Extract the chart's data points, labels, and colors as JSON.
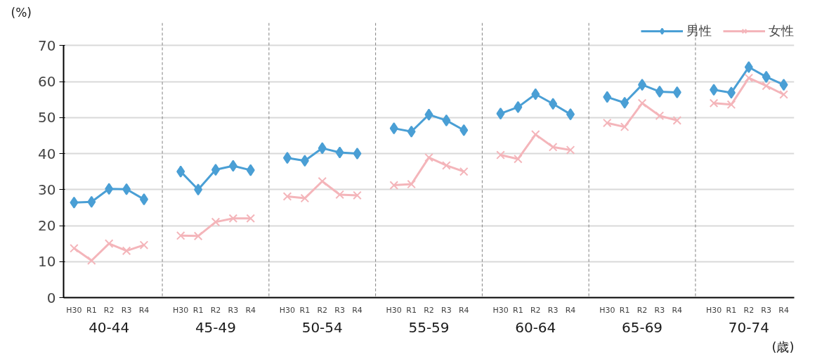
{
  "chart_data": {
    "type": "line",
    "ylabel": "(%)",
    "xlabel": "(歳)",
    "categories": [
      "H30",
      "R1",
      "R2",
      "R3",
      "R4",
      "H30",
      "R1",
      "R2",
      "R3",
      "R4",
      "H30",
      "R1",
      "R2",
      "R3",
      "R4",
      "H30",
      "R1",
      "R2",
      "R3",
      "R4",
      "H30",
      "R1",
      "R2",
      "R3",
      "R4",
      "H30",
      "R1",
      "R2",
      "R3",
      "R4",
      "H30",
      "R1",
      "R2",
      "R3",
      "R4"
    ],
    "annotations": [
      "40-44",
      "45-49",
      "50-54",
      "55-59",
      "60-64",
      "65-69",
      "70-74"
    ],
    "series": [
      {
        "name": "男性",
        "color": "#4a9fd5",
        "marker": "diamond",
        "values": [
          26.4,
          26.6,
          30.2,
          30.1,
          27.3,
          35.0,
          30.0,
          35.5,
          36.6,
          35.4,
          38.8,
          38.0,
          41.5,
          40.3,
          40.0,
          47.0,
          46.1,
          50.8,
          49.2,
          46.5,
          51.1,
          52.9,
          56.5,
          53.8,
          50.9,
          55.7,
          54.1,
          59.1,
          57.2,
          57.0,
          57.7,
          56.9,
          64.0,
          61.3,
          59.1
        ]
      },
      {
        "name": "女性",
        "color": "#f4b5ba",
        "marker": "cross",
        "values": [
          13.7,
          10.3,
          15.0,
          13.0,
          14.6,
          17.2,
          17.1,
          21.0,
          22.0,
          22.0,
          28.1,
          27.6,
          32.3,
          28.6,
          28.4,
          31.2,
          31.5,
          38.9,
          36.7,
          35.0,
          39.6,
          38.5,
          45.3,
          41.8,
          41.0,
          48.5,
          47.4,
          54.0,
          50.5,
          49.2,
          54.0,
          53.6,
          61.0,
          58.8,
          56.4
        ]
      }
    ],
    "ylim": [
      0,
      70
    ],
    "yticks": [
      0,
      10,
      20,
      30,
      40,
      50,
      60,
      70
    ],
    "grid": "y",
    "legend": "top right"
  }
}
